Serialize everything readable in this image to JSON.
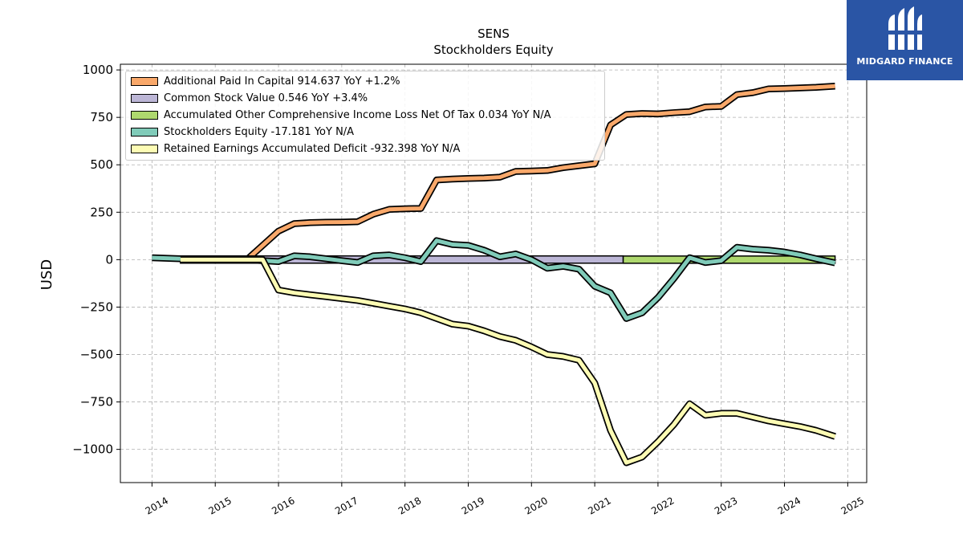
{
  "header": {
    "ticker": "SENS",
    "subtitle": "Stockholders  Equity"
  },
  "brand": {
    "name": "MIDGARD FINANCE",
    "color": "#2a55a5",
    "icon": "midgard-logo-icon"
  },
  "legend": {
    "items": [
      {
        "label": "Additional Paid In Capital  914.637 YoY +1.2%",
        "color": "#f9a86a"
      },
      {
        "label": "Common Stock Value  0.546 YoY +3.4%",
        "color": "#bcb6d6"
      },
      {
        "label": "Accumulated Other Comprehensive Income Loss Net Of Tax  0.034 YoY N/A",
        "color": "#aed86e"
      },
      {
        "label": "Stockholders Equity  -17.181 YoY N/A",
        "color": "#80cbb9"
      },
      {
        "label": "Retained Earnings Accumulated Deficit  -932.398 YoY N/A",
        "color": "#fdfcb4"
      }
    ]
  },
  "chart_data": {
    "type": "line",
    "title": "SENS",
    "subtitle": "Stockholders  Equity",
    "xlabel": "",
    "ylabel": "USD",
    "xlim": [
      2013.5,
      2025.3
    ],
    "ylim": [
      -1175,
      1030
    ],
    "xticks": [
      2014,
      2015,
      2016,
      2017,
      2018,
      2019,
      2020,
      2021,
      2022,
      2023,
      2024,
      2025
    ],
    "yticks": [
      1000,
      750,
      500,
      250,
      0,
      -250,
      -500,
      -750,
      -1000
    ],
    "ytick_labels": [
      "1000",
      "750",
      "500",
      "250",
      "0",
      "−250",
      "−500",
      "−750",
      "−1000"
    ],
    "grid": true,
    "legend_position": "top-left",
    "series": [
      {
        "name": "Additional Paid In Capital",
        "color": "#f9a86a",
        "x": [
          2015.5,
          2015.75,
          2016.0,
          2016.25,
          2016.5,
          2016.75,
          2017.0,
          2017.25,
          2017.5,
          2017.75,
          2018.0,
          2018.25,
          2018.5,
          2018.75,
          2019.0,
          2019.25,
          2019.5,
          2019.75,
          2020.0,
          2020.25,
          2020.5,
          2020.75,
          2021.0,
          2021.25,
          2021.5,
          2021.75,
          2022.0,
          2022.25,
          2022.5,
          2022.75,
          2023.0,
          2023.25,
          2023.5,
          2023.75,
          2024.0,
          2024.25,
          2024.5,
          2024.8
        ],
        "y": [
          0,
          75,
          150,
          190,
          195,
          197,
          198,
          200,
          240,
          265,
          268,
          270,
          420,
          425,
          428,
          430,
          435,
          465,
          467,
          470,
          485,
          495,
          505,
          710,
          765,
          770,
          768,
          775,
          780,
          805,
          808,
          870,
          880,
          900,
          902,
          905,
          908,
          915
        ]
      },
      {
        "name": "Common Stock Value",
        "color": "#bcb6d6",
        "bars": [
          {
            "x0": 2014.45,
            "x1": 2021.45,
            "y": 0.546
          }
        ]
      },
      {
        "name": "Accumulated Other Comprehensive Income Loss Net Of Tax",
        "color": "#aed86e",
        "bars": [
          {
            "x0": 2021.45,
            "x1": 2024.8,
            "y": 0.034
          }
        ]
      },
      {
        "name": "Stockholders Equity",
        "color": "#80cbb9",
        "x": [
          2014.0,
          2014.45,
          2015.0,
          2015.5,
          2015.75,
          2016.0,
          2016.25,
          2016.5,
          2016.75,
          2017.0,
          2017.25,
          2017.5,
          2017.75,
          2018.0,
          2018.25,
          2018.5,
          2018.75,
          2019.0,
          2019.25,
          2019.5,
          2019.75,
          2020.0,
          2020.25,
          2020.5,
          2020.75,
          2021.0,
          2021.25,
          2021.5,
          2021.75,
          2022.0,
          2022.25,
          2022.5,
          2022.75,
          2023.0,
          2023.25,
          2023.5,
          2023.75,
          2024.0,
          2024.25,
          2024.5,
          2024.8
        ],
        "y": [
          10,
          5,
          5,
          0,
          -5,
          -10,
          20,
          15,
          5,
          -5,
          -15,
          20,
          25,
          10,
          -10,
          100,
          80,
          75,
          50,
          15,
          30,
          0,
          -45,
          -35,
          -50,
          -140,
          -175,
          -310,
          -280,
          -200,
          -100,
          10,
          -15,
          -5,
          65,
          55,
          50,
          40,
          25,
          5,
          -17
        ]
      },
      {
        "name": "Retained Earnings Accumulated Deficit",
        "color": "#fdfcb4",
        "x": [
          2014.45,
          2015.0,
          2015.5,
          2015.75,
          2016.0,
          2016.25,
          2016.5,
          2016.75,
          2017.0,
          2017.25,
          2017.5,
          2017.75,
          2018.0,
          2018.25,
          2018.5,
          2018.75,
          2019.0,
          2019.25,
          2019.5,
          2019.75,
          2020.0,
          2020.25,
          2020.5,
          2020.75,
          2021.0,
          2021.25,
          2021.5,
          2021.75,
          2022.0,
          2022.25,
          2022.5,
          2022.75,
          2023.0,
          2023.25,
          2023.5,
          2023.75,
          2024.0,
          2024.25,
          2024.5,
          2024.8
        ],
        "y": [
          0,
          0,
          0,
          0,
          -160,
          -175,
          -185,
          -195,
          -205,
          -215,
          -230,
          -245,
          -260,
          -280,
          -310,
          -340,
          -350,
          -375,
          -405,
          -425,
          -460,
          -500,
          -510,
          -530,
          -650,
          -900,
          -1070,
          -1040,
          -960,
          -870,
          -760,
          -820,
          -810,
          -810,
          -830,
          -850,
          -865,
          -880,
          -900,
          -932
        ]
      }
    ]
  }
}
